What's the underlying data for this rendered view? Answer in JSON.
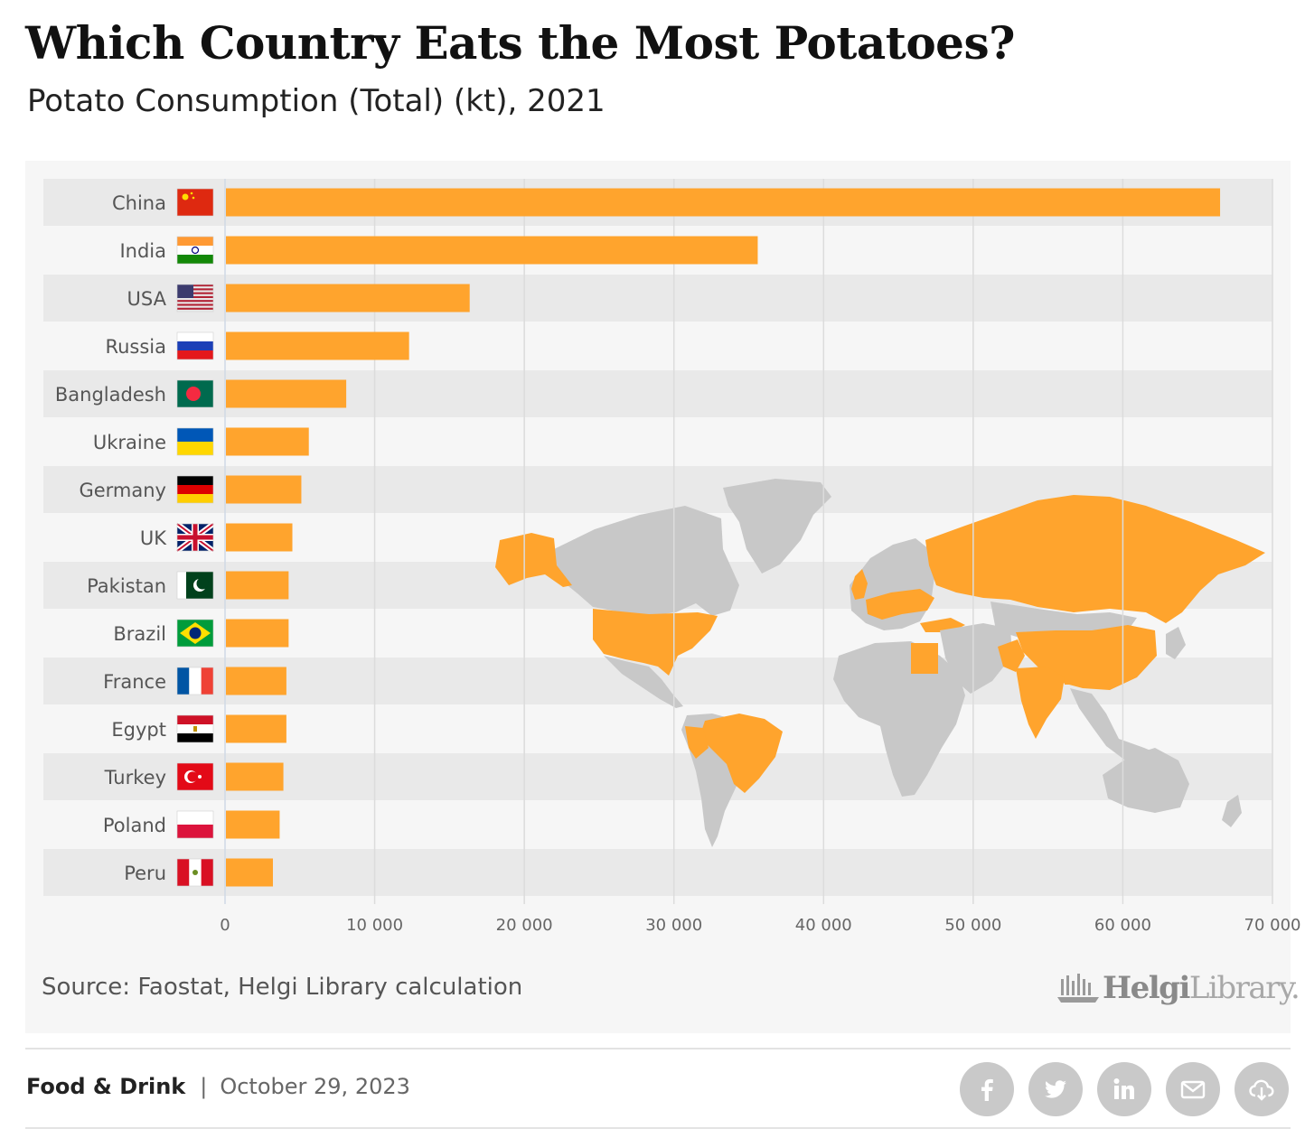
{
  "header": {
    "title": "Which Country Eats the Most Potatoes?",
    "subtitle": "Potato Consumption (Total) (kt), 2021"
  },
  "chart_data": {
    "type": "bar",
    "orientation": "horizontal",
    "title": "Which Country Eats the Most Potatoes?",
    "subtitle": "Potato Consumption (Total) (kt), 2021",
    "xlabel": "",
    "ylabel": "",
    "categories": [
      "China",
      "India",
      "USA",
      "Russia",
      "Bangladesh",
      "Ukraine",
      "Germany",
      "UK",
      "Pakistan",
      "Brazil",
      "France",
      "Egypt",
      "Turkey",
      "Poland",
      "Peru"
    ],
    "values": [
      66500,
      35600,
      16350,
      12300,
      8100,
      5600,
      5100,
      4500,
      4250,
      4250,
      4100,
      4100,
      3900,
      3650,
      3200
    ],
    "xlim": [
      0,
      70000
    ],
    "xticks": [
      0,
      10000,
      20000,
      30000,
      40000,
      50000,
      60000,
      70000
    ],
    "xtick_labels": [
      "0",
      "10 000",
      "20 000",
      "30 000",
      "40 000",
      "50 000",
      "60 000",
      "70 000"
    ],
    "grid": "vertical",
    "bar_color": "#ffa42d",
    "highlight_color": "#ffa42d",
    "map_color": "#c8c8c8",
    "background_map": "world map with listed countries highlighted"
  },
  "source": "Source: Faostat, Helgi Library calculation",
  "logo": {
    "part1": "Helgi",
    "part2": "Library."
  },
  "footer": {
    "category": "Food & Drink",
    "separator": "|",
    "date": "October 29, 2023"
  },
  "share": [
    "facebook-icon",
    "twitter-icon",
    "linkedin-icon",
    "email-icon",
    "download-cloud-icon"
  ]
}
